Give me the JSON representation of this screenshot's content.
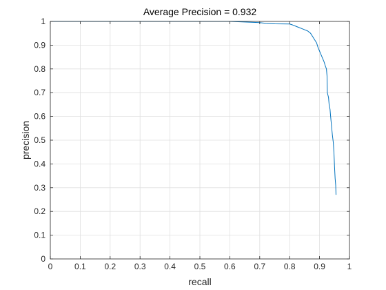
{
  "chart_data": {
    "type": "line",
    "title": "Average Precision = 0.932",
    "xlabel": "recall",
    "ylabel": "precision",
    "xlim": [
      0,
      1
    ],
    "ylim": [
      0,
      1
    ],
    "xticks": [
      0,
      0.1,
      0.2,
      0.3,
      0.4,
      0.5,
      0.6,
      0.7,
      0.8,
      0.9,
      1
    ],
    "yticks": [
      0,
      0.1,
      0.2,
      0.3,
      0.4,
      0.5,
      0.6,
      0.7,
      0.8,
      0.9,
      1
    ],
    "xtick_labels": [
      "0",
      "0.1",
      "0.2",
      "0.3",
      "0.4",
      "0.5",
      "0.6",
      "0.7",
      "0.8",
      "0.9",
      "1"
    ],
    "ytick_labels": [
      "0",
      "0.1",
      "0.2",
      "0.3",
      "0.4",
      "0.5",
      "0.6",
      "0.7",
      "0.8",
      "0.9",
      "1"
    ],
    "grid": true,
    "series": [
      {
        "color": "#0072BD",
        "points": [
          [
            0.0,
            1.0
          ],
          [
            0.3,
            1.0
          ],
          [
            0.6,
            1.0
          ],
          [
            0.7,
            0.995
          ],
          [
            0.72,
            0.992
          ],
          [
            0.75,
            0.99
          ],
          [
            0.8,
            0.989
          ],
          [
            0.81,
            0.985
          ],
          [
            0.82,
            0.98
          ],
          [
            0.83,
            0.975
          ],
          [
            0.84,
            0.97
          ],
          [
            0.85,
            0.965
          ],
          [
            0.86,
            0.96
          ],
          [
            0.87,
            0.95
          ],
          [
            0.88,
            0.93
          ],
          [
            0.89,
            0.91
          ],
          [
            0.895,
            0.89
          ],
          [
            0.9,
            0.875
          ],
          [
            0.905,
            0.86
          ],
          [
            0.91,
            0.845
          ],
          [
            0.915,
            0.83
          ],
          [
            0.92,
            0.81
          ],
          [
            0.923,
            0.8
          ],
          [
            0.925,
            0.77
          ],
          [
            0.926,
            0.7
          ],
          [
            0.93,
            0.68
          ],
          [
            0.932,
            0.65
          ],
          [
            0.935,
            0.63
          ],
          [
            0.937,
            0.6
          ],
          [
            0.94,
            0.56
          ],
          [
            0.943,
            0.52
          ],
          [
            0.946,
            0.49
          ],
          [
            0.948,
            0.45
          ],
          [
            0.95,
            0.39
          ],
          [
            0.952,
            0.34
          ],
          [
            0.954,
            0.31
          ],
          [
            0.955,
            0.27
          ]
        ]
      }
    ]
  }
}
